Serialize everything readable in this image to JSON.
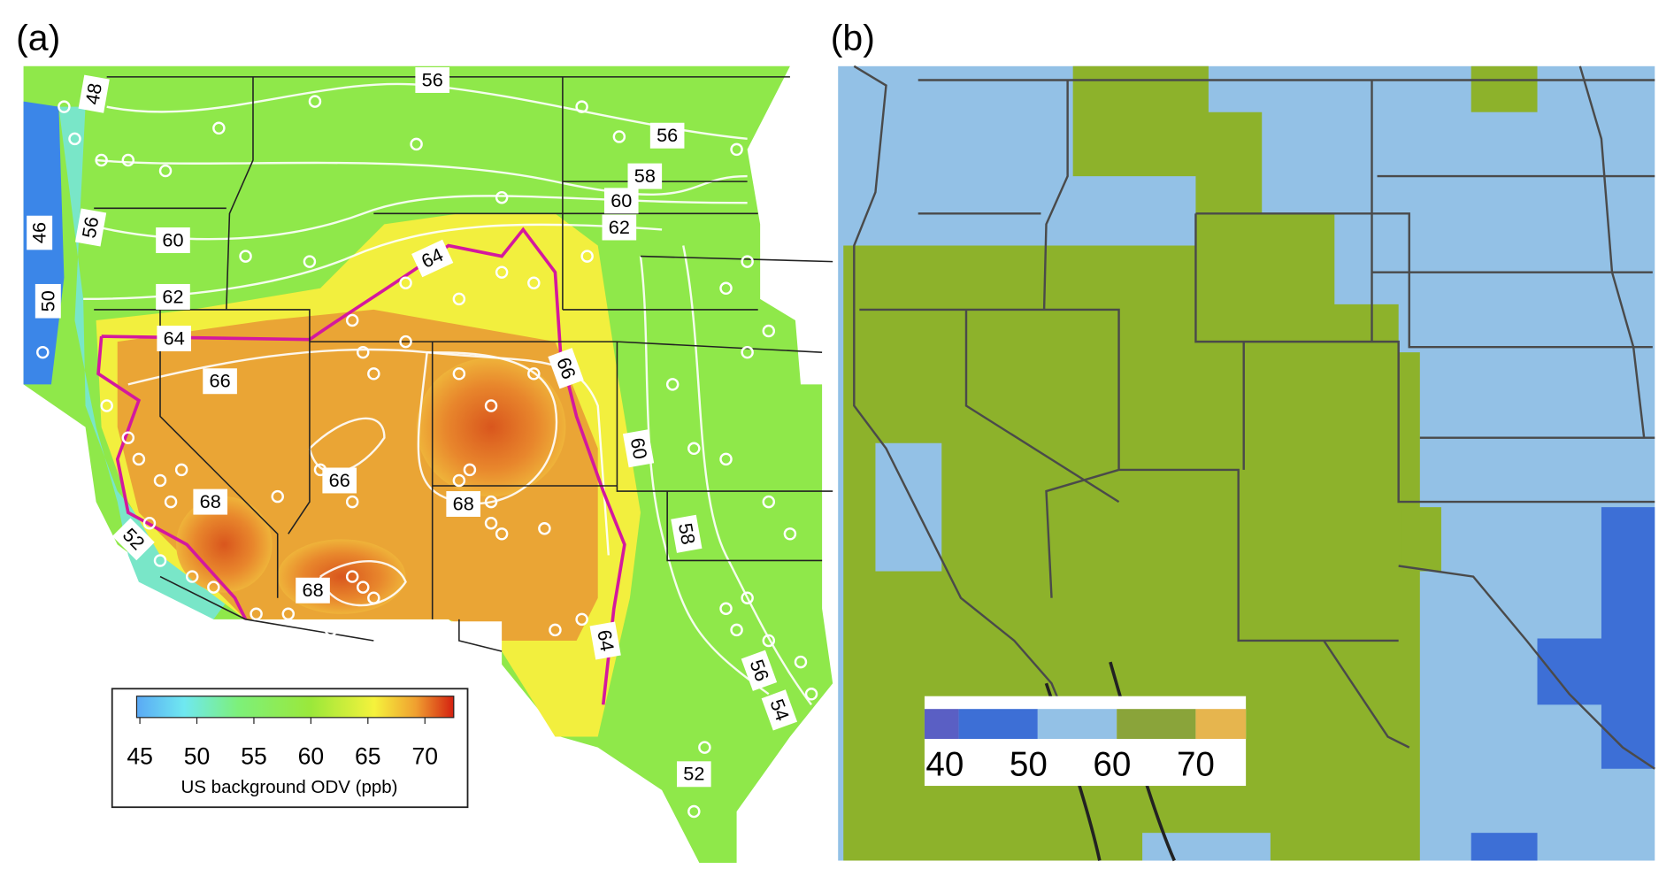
{
  "panels": [
    {
      "label": "(a)",
      "contour_labels": [
        56,
        48,
        56,
        58,
        60,
        62,
        46,
        56,
        60,
        64,
        62,
        50,
        64,
        66,
        66,
        60,
        66,
        68,
        68,
        58,
        52,
        68,
        64,
        56,
        54,
        52
      ],
      "colorbar": {
        "ticks": [
          45,
          50,
          55,
          60,
          65,
          70
        ],
        "label": "US background ODV (ppb)"
      }
    },
    {
      "label": "(b)",
      "legend": {
        "ticks": [
          40,
          50,
          60,
          70
        ]
      }
    }
  ]
}
